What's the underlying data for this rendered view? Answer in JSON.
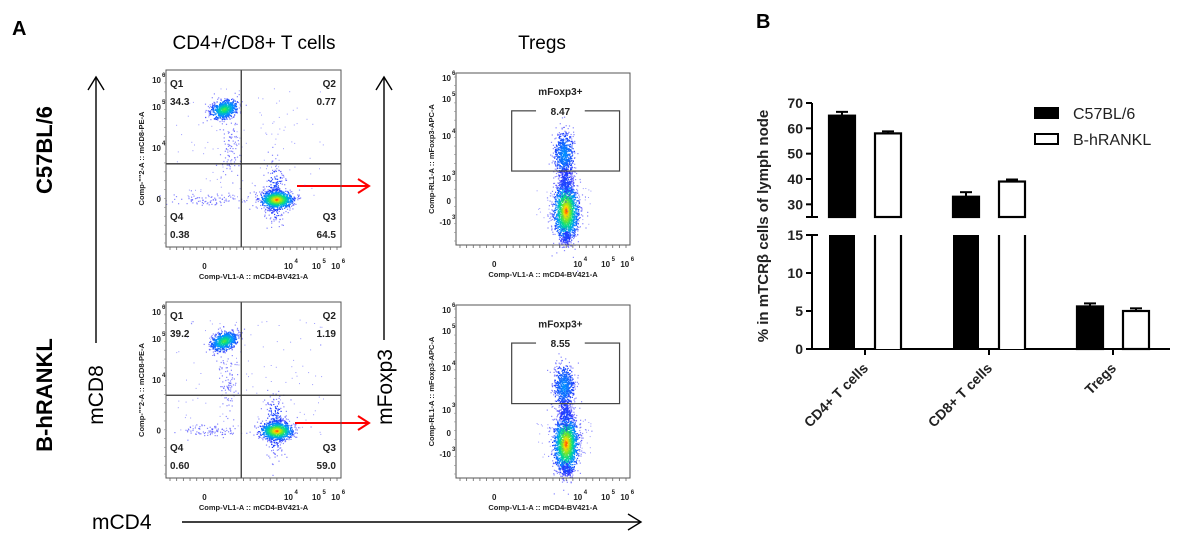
{
  "panels": {
    "a_label": "A",
    "b_label": "B"
  },
  "flow": {
    "col_titles": [
      "CD4+/CD8+ T cells",
      "Tregs"
    ],
    "row_labels": [
      "C57BL/6",
      "B-hRANKL"
    ],
    "y_axis_label_left": "mCD8",
    "y_axis_label_mid": "mFoxp3",
    "x_axis_label": "mCD4",
    "arrow_color": "#ff0000",
    "x_channel": "Comp-VL1-A :: mCD4-BV421-A",
    "y_channel_cd8": "Comp-\"\"2-A :: mCD8-PE-A",
    "y_channel_foxp3": "Comp-RL1-A :: mFoxp3-APC-A",
    "x_ticks": [
      "0",
      "10",
      "10",
      "10"
    ],
    "x_tick_exps": [
      "",
      "4",
      "5",
      "6"
    ],
    "y_ticks_cd8": [
      {
        "b": "10",
        "e": "6"
      },
      {
        "b": "10",
        "e": "5"
      },
      {
        "b": "10",
        "e": "4"
      },
      {
        "b": "0",
        "e": ""
      }
    ],
    "y_ticks_foxp3": [
      {
        "b": "10",
        "e": "6"
      },
      {
        "b": "10",
        "e": "5"
      },
      {
        "b": "10",
        "e": "4"
      },
      {
        "b": "10",
        "e": "3"
      },
      {
        "b": "0",
        "e": ""
      },
      {
        "b": "-10",
        "e": "3"
      }
    ],
    "cd4cd8_plots": [
      {
        "sample": "C57BL/6",
        "quadrants": [
          {
            "name": "Q1",
            "value": "34.3"
          },
          {
            "name": "Q2",
            "value": "0.77"
          },
          {
            "name": "Q3",
            "value": "64.5"
          },
          {
            "name": "Q4",
            "value": "0.38"
          }
        ]
      },
      {
        "sample": "B-hRANKL",
        "quadrants": [
          {
            "name": "Q1",
            "value": "39.2"
          },
          {
            "name": "Q2",
            "value": "1.19"
          },
          {
            "name": "Q3",
            "value": "59.0"
          },
          {
            "name": "Q4",
            "value": "0.60"
          }
        ]
      }
    ],
    "treg_plots": [
      {
        "sample": "C57BL/6",
        "gate_name": "mFoxp3+",
        "gate_value": "8.47"
      },
      {
        "sample": "B-hRANKL",
        "gate_name": "mFoxp3+",
        "gate_value": "8.55"
      }
    ]
  },
  "chart_data": {
    "type": "bar",
    "title": "",
    "xlabel": "",
    "ylabel": "% in mTCRβ cells of lymph node",
    "categories": [
      "CD4+ T cells",
      "CD8+ T cells",
      "Tregs"
    ],
    "series": [
      {
        "name": "C57BL/6",
        "fill": "#000000",
        "values": [
          65,
          33,
          5.6
        ],
        "errors": [
          1.5,
          1.8,
          0.4
        ]
      },
      {
        "name": "B-hRANKL",
        "fill": "#ffffff",
        "values": [
          58,
          39,
          5.0
        ],
        "errors": [
          0.8,
          0.8,
          0.35
        ]
      }
    ],
    "y_axis_break": {
      "lower": [
        0,
        15
      ],
      "upper": [
        25,
        70
      ]
    },
    "yticks_lower": [
      0,
      5,
      10,
      15
    ],
    "yticks_upper": [
      30,
      40,
      50,
      60,
      70
    ],
    "legend_position": "top-right",
    "grid": false
  }
}
